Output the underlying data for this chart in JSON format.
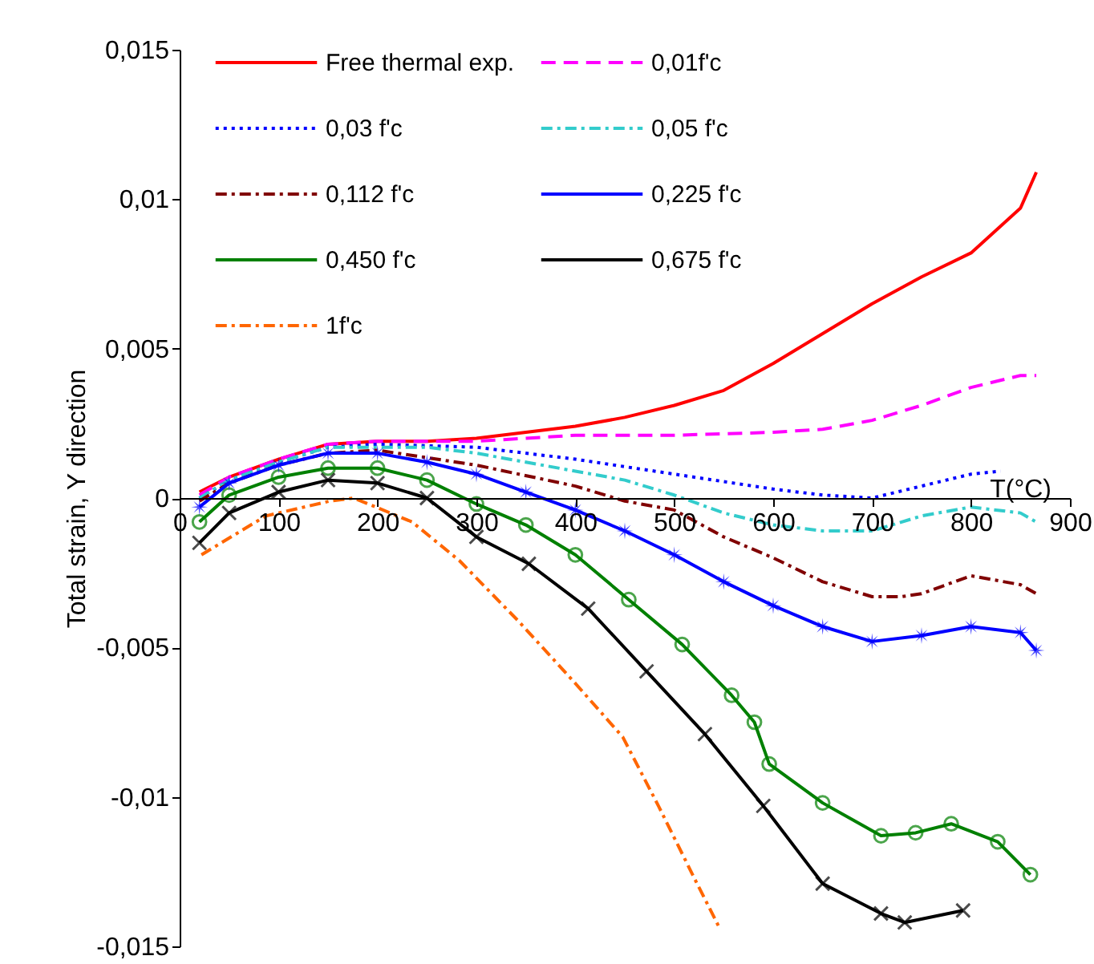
{
  "chart_data": {
    "type": "line",
    "xlabel": "T(°C)",
    "ylabel": "Total strain, Y direction",
    "xlim": [
      0,
      900
    ],
    "xticks": [
      0,
      100,
      200,
      300,
      400,
      500,
      600,
      700,
      800,
      900
    ],
    "ylim": [
      -0.015,
      0.015
    ],
    "yticks": [
      {
        "value": -0.015,
        "label": "-0,015"
      },
      {
        "value": -0.01,
        "label": "-0,01"
      },
      {
        "value": -0.005,
        "label": "-0,005"
      },
      {
        "value": 0,
        "label": "0"
      },
      {
        "value": 0.005,
        "label": "0,005"
      },
      {
        "value": 0.01,
        "label": "0,01"
      },
      {
        "value": 0.015,
        "label": "0,015"
      }
    ],
    "grid": false,
    "legend": "top",
    "series": [
      {
        "name": "Free thermal exp.",
        "color": "#ff0000",
        "line_style": "solid",
        "marker": "none",
        "x": [
          20,
          50,
          100,
          150,
          200,
          250,
          300,
          350,
          400,
          450,
          500,
          550,
          600,
          650,
          700,
          750,
          800,
          850,
          866
        ],
        "values": [
          0.0002,
          0.0007,
          0.0013,
          0.0018,
          0.0019,
          0.0019,
          0.002,
          0.0022,
          0.0024,
          0.0027,
          0.0031,
          0.0036,
          0.0045,
          0.0055,
          0.0065,
          0.0074,
          0.0082,
          0.0097,
          0.0109
        ]
      },
      {
        "name": "0,01f'c",
        "color": "#ff00ff",
        "line_style": "dashed",
        "marker": "none",
        "x": [
          20,
          50,
          100,
          150,
          200,
          250,
          300,
          400,
          500,
          600,
          650,
          700,
          750,
          800,
          850,
          866
        ],
        "values": [
          0.0001,
          0.0007,
          0.0013,
          0.0018,
          0.0019,
          0.0019,
          0.0019,
          0.0021,
          0.0021,
          0.0022,
          0.0023,
          0.0026,
          0.0031,
          0.0037,
          0.0041,
          0.0041
        ]
      },
      {
        "name": "0,03 f'c",
        "color": "#0000ff",
        "line_style": "dotted",
        "marker": "none",
        "x": [
          20,
          50,
          100,
          150,
          200,
          300,
          400,
          500,
          600,
          650,
          700,
          750,
          800,
          830
        ],
        "values": [
          0.0,
          0.0006,
          0.0012,
          0.0017,
          0.0018,
          0.0017,
          0.0013,
          0.0008,
          0.0003,
          0.0001,
          0.0,
          0.0004,
          0.0008,
          0.0009
        ]
      },
      {
        "name": "0,05 f'c",
        "color": "#33cccc",
        "line_style": "dashdot",
        "marker": "none",
        "x": [
          20,
          50,
          100,
          150,
          250,
          300,
          350,
          400,
          450,
          500,
          550,
          600,
          650,
          700,
          750,
          800,
          850,
          866
        ],
        "values": [
          0.0,
          0.0006,
          0.0012,
          0.0017,
          0.0017,
          0.0015,
          0.0012,
          0.0009,
          0.0006,
          0.0001,
          -0.0005,
          -0.0009,
          -0.0011,
          -0.0011,
          -0.0006,
          -0.0003,
          -0.0005,
          -0.0008
        ]
      },
      {
        "name": "0,112 f'c",
        "color": "#800000",
        "line_style": "dashdot",
        "marker": "none",
        "x": [
          20,
          50,
          100,
          150,
          200,
          300,
          400,
          450,
          500,
          550,
          600,
          650,
          700,
          730,
          750,
          800,
          850,
          866
        ],
        "values": [
          -0.0001,
          0.0005,
          0.0011,
          0.0015,
          0.0016,
          0.0011,
          0.0004,
          -0.0001,
          -0.0004,
          -0.0013,
          -0.002,
          -0.0028,
          -0.0033,
          -0.0033,
          -0.0032,
          -0.0026,
          -0.0029,
          -0.0032
        ]
      },
      {
        "name": "0,225 f'c",
        "color": "#0000ff",
        "line_style": "solid",
        "marker": "star",
        "x": [
          20,
          50,
          100,
          150,
          200,
          250,
          300,
          350,
          400,
          450,
          500,
          550,
          600,
          650,
          700,
          750,
          800,
          850,
          866
        ],
        "values": [
          -0.0003,
          0.0005,
          0.0011,
          0.0015,
          0.0015,
          0.0012,
          0.0008,
          0.0002,
          -0.0004,
          -0.0011,
          -0.0019,
          -0.0028,
          -0.0036,
          -0.0043,
          -0.0048,
          -0.0046,
          -0.0043,
          -0.0045,
          -0.0051
        ]
      },
      {
        "name": "0,450 f'c",
        "color": "#008000",
        "line_style": "solid",
        "marker": "circle",
        "x": [
          20,
          50,
          100,
          150,
          200,
          250,
          300,
          350,
          400,
          454,
          508,
          558,
          581,
          596,
          650,
          709,
          744,
          780,
          827,
          860
        ],
        "values": [
          -0.0008,
          0.0001,
          0.0007,
          0.001,
          0.001,
          0.0006,
          -0.0002,
          -0.0009,
          -0.0019,
          -0.0034,
          -0.0049,
          -0.0066,
          -0.0075,
          -0.0089,
          -0.0102,
          -0.0113,
          -0.0112,
          -0.0109,
          -0.0115,
          -0.0126
        ]
      },
      {
        "name": "0,675 f'c",
        "color": "#000000",
        "line_style": "solid",
        "marker": "cross",
        "x": [
          20,
          50,
          100,
          150,
          200,
          250,
          300,
          353,
          413,
          472,
          531,
          590,
          650,
          709,
          733,
          792
        ],
        "values": [
          -0.0015,
          -0.0005,
          0.0002,
          0.0006,
          0.0005,
          0.0,
          -0.0013,
          -0.0022,
          -0.0037,
          -0.0058,
          -0.0079,
          -0.0103,
          -0.0129,
          -0.0139,
          -0.0142,
          -0.0138
        ]
      },
      {
        "name": "1f'c",
        "color": "#ff6600",
        "line_style": "dashdot",
        "marker": "none",
        "x": [
          22,
          87,
          152,
          176,
          235,
          283,
          342,
          400,
          448,
          484,
          520,
          546
        ],
        "values": [
          -0.0019,
          -0.0006,
          -0.0001,
          0.0,
          -0.0008,
          -0.0021,
          -0.0041,
          -0.0062,
          -0.008,
          -0.0103,
          -0.0127,
          -0.0144
        ]
      }
    ]
  }
}
